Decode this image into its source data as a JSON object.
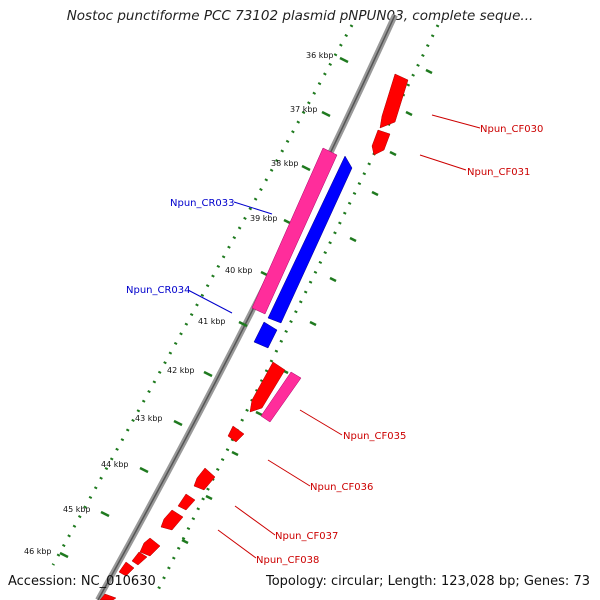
{
  "title": "Nostoc punctiforme PCC 73102 plasmid pNPUN03, complete seque...",
  "footer": {
    "accession": "Accession: NC_010630",
    "summary": "Topology: circular; Length: 123,028 bp; Genes: 73"
  },
  "ticks": [
    "36 kbp",
    "37 kbp",
    "38 kbp",
    "39 kbp",
    "40 kbp",
    "41 kbp",
    "42 kbp",
    "43 kbp",
    "44 kbp",
    "45 kbp",
    "46 kbp"
  ],
  "genes": {
    "cf030": "Npun_CF030",
    "cf031": "Npun_CF031",
    "cr033": "Npun_CR033",
    "cr034": "Npun_CR034",
    "cf035": "Npun_CF035",
    "cf036": "Npun_CF036",
    "cf037": "Npun_CF037",
    "cf038": "Npun_CF038"
  },
  "colors": {
    "forward_cds": "#ff0000",
    "reverse_cds": "#0000ff",
    "pink_feature": "#ff2d9b",
    "forward_label": "#cc0000",
    "reverse_label": "#0000cc",
    "backbone": "#888888",
    "gc_dots": "#1f7a1f"
  }
}
